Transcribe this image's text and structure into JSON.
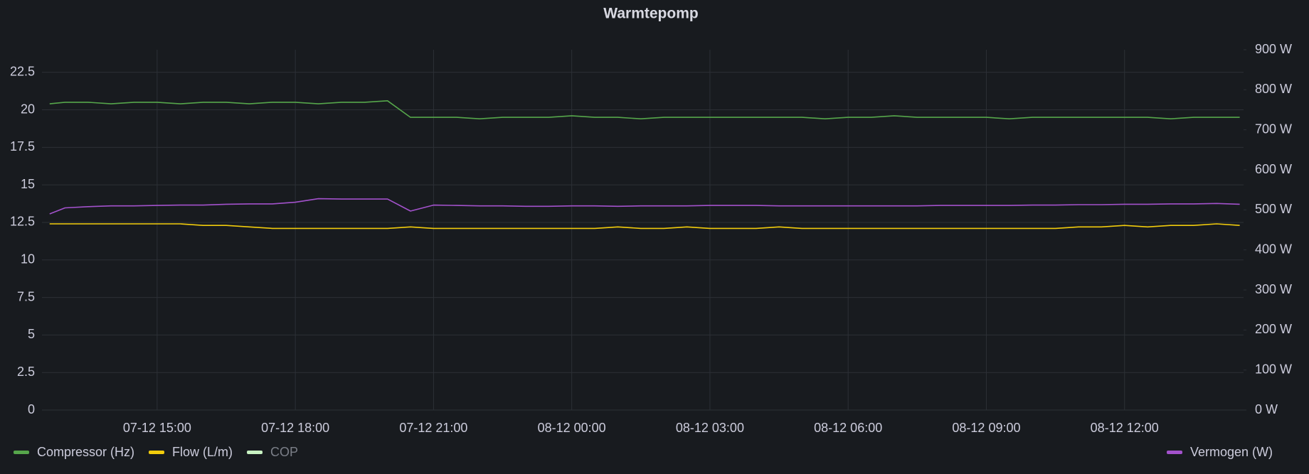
{
  "chart_data": {
    "type": "line",
    "title": "Warmtepomp",
    "x": [
      "07-12 12:40",
      "07-12 13:00",
      "07-12 13:30",
      "07-12 14:00",
      "07-12 14:30",
      "07-12 15:00",
      "07-12 15:30",
      "07-12 16:00",
      "07-12 16:30",
      "07-12 17:00",
      "07-12 17:30",
      "07-12 18:00",
      "07-12 18:30",
      "07-12 19:00",
      "07-12 19:30",
      "07-12 20:00",
      "07-12 20:30",
      "07-12 21:00",
      "07-12 21:30",
      "07-12 22:00",
      "07-12 22:30",
      "07-12 23:00",
      "07-12 23:30",
      "08-12 00:00",
      "08-12 00:30",
      "08-12 01:00",
      "08-12 01:30",
      "08-12 02:00",
      "08-12 02:30",
      "08-12 03:00",
      "08-12 03:30",
      "08-12 04:00",
      "08-12 04:30",
      "08-12 05:00",
      "08-12 05:30",
      "08-12 06:00",
      "08-12 06:30",
      "08-12 07:00",
      "08-12 07:30",
      "08-12 08:00",
      "08-12 08:30",
      "08-12 09:00",
      "08-12 09:30",
      "08-12 10:00",
      "08-12 10:30",
      "08-12 11:00",
      "08-12 11:30",
      "08-12 12:00",
      "08-12 12:30",
      "08-12 13:00",
      "08-12 13:30",
      "08-12 14:00",
      "08-12 14:30"
    ],
    "xlim": [
      "07-12 12:30",
      "08-12 14:35"
    ],
    "xticks": [
      "07-12 15:00",
      "07-12 18:00",
      "07-12 21:00",
      "08-12 00:00",
      "08-12 03:00",
      "08-12 06:00",
      "08-12 09:00",
      "08-12 12:00"
    ],
    "ylim": [
      0,
      24
    ],
    "yticks": [
      0,
      2.5,
      5,
      7.5,
      10,
      12.5,
      15,
      17.5,
      20,
      22.5
    ],
    "y2lim": [
      0,
      900
    ],
    "y2ticks": [
      {
        "value": 0,
        "label": "0 W"
      },
      {
        "value": 100,
        "label": "100 W"
      },
      {
        "value": 200,
        "label": "200 W"
      },
      {
        "value": 300,
        "label": "300 W"
      },
      {
        "value": 400,
        "label": "400 W"
      },
      {
        "value": 500,
        "label": "500 W"
      },
      {
        "value": 600,
        "label": "600 W"
      },
      {
        "value": 700,
        "label": "700 W"
      },
      {
        "value": 800,
        "label": "800 W"
      },
      {
        "value": 900,
        "label": "900 W"
      }
    ],
    "grid": true,
    "series": [
      {
        "name": "Compressor (Hz)",
        "color": "#56a64b",
        "values": [
          20.4,
          20.5,
          20.5,
          20.4,
          20.5,
          20.5,
          20.4,
          20.5,
          20.5,
          20.4,
          20.5,
          20.5,
          20.4,
          20.5,
          20.5,
          20.6,
          19.5,
          19.5,
          19.5,
          19.4,
          19.5,
          19.5,
          19.5,
          19.6,
          19.5,
          19.5,
          19.4,
          19.5,
          19.5,
          19.5,
          19.5,
          19.5,
          19.5,
          19.5,
          19.4,
          19.5,
          19.5,
          19.6,
          19.5,
          19.5,
          19.5,
          19.5,
          19.4,
          19.5,
          19.5,
          19.5,
          19.5,
          19.5,
          19.5,
          19.4,
          19.5,
          19.5,
          19.5
        ]
      },
      {
        "name": "Flow (L/m)",
        "color": "#f2cc0c",
        "values": [
          12.4,
          12.4,
          12.4,
          12.4,
          12.4,
          12.4,
          12.4,
          12.3,
          12.3,
          12.2,
          12.1,
          12.1,
          12.1,
          12.1,
          12.1,
          12.1,
          12.2,
          12.1,
          12.1,
          12.1,
          12.1,
          12.1,
          12.1,
          12.1,
          12.1,
          12.2,
          12.1,
          12.1,
          12.2,
          12.1,
          12.1,
          12.1,
          12.2,
          12.1,
          12.1,
          12.1,
          12.1,
          12.1,
          12.1,
          12.1,
          12.1,
          12.1,
          12.1,
          12.1,
          12.1,
          12.2,
          12.2,
          12.3,
          12.2,
          12.3,
          12.3,
          12.4,
          12.3
        ]
      },
      {
        "name": "COP",
        "color": "#c8f2c2",
        "hidden": true,
        "values": [
          null,
          null,
          null,
          null,
          null,
          null,
          null,
          null,
          null,
          null,
          null,
          null,
          null,
          null,
          null,
          null,
          null,
          null,
          null,
          null,
          null,
          null,
          null,
          null,
          null,
          null,
          null,
          null,
          null,
          null,
          null,
          null,
          null,
          null,
          null,
          null,
          null,
          null,
          null,
          null,
          null,
          null,
          null,
          null,
          null,
          null,
          null,
          null,
          null,
          null,
          null,
          null,
          null
        ]
      },
      {
        "name": "Vermogen (W)",
        "color": "#a352cc",
        "axis": "y2",
        "values": [
          490,
          505,
          508,
          510,
          510,
          511,
          512,
          512,
          514,
          515,
          515,
          519,
          528,
          527,
          527,
          527,
          497,
          512,
          511,
          510,
          510,
          509,
          509,
          510,
          510,
          509,
          510,
          510,
          510,
          511,
          511,
          511,
          510,
          510,
          510,
          510,
          510,
          510,
          510,
          511,
          511,
          511,
          511,
          512,
          512,
          513,
          513,
          514,
          514,
          515,
          515,
          516,
          514
        ]
      }
    ]
  }
}
